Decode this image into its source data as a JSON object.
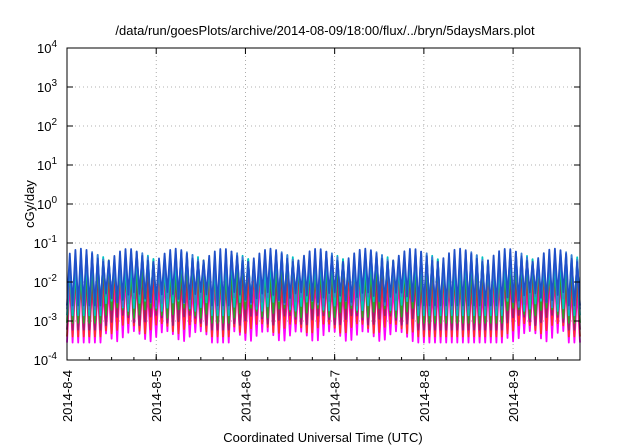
{
  "chart_data": {
    "type": "line",
    "title": "/data/run/goesPlots/archive/2014-08-09/18:00/flux/../bryn/5daysMars.plot",
    "xlabel": "Coordinated Universal Time (UTC)",
    "ylabel": "cGy/day",
    "y_scale": "log",
    "ylim": [
      0.0001,
      10000
    ],
    "y_ticks": [
      {
        "value": 0.0001,
        "base": "10",
        "exp": "-4"
      },
      {
        "value": 0.001,
        "base": "10",
        "exp": "-3"
      },
      {
        "value": 0.01,
        "base": "10",
        "exp": "-2"
      },
      {
        "value": 0.1,
        "base": "10",
        "exp": "-1"
      },
      {
        "value": 1,
        "base": "10",
        "exp": "0"
      },
      {
        "value": 10,
        "base": "10",
        "exp": "1"
      },
      {
        "value": 100,
        "base": "10",
        "exp": "2"
      },
      {
        "value": 1000,
        "base": "10",
        "exp": "3"
      },
      {
        "value": 10000,
        "base": "10",
        "exp": "4"
      }
    ],
    "xlim": [
      "2014-08-04 00:00",
      "2014-08-09 18:00"
    ],
    "x_ticks": [
      "2014-8-4",
      "2014-8-5",
      "2014-8-6",
      "2014-8-7",
      "2014-8-8",
      "2014-8-9"
    ],
    "grid": true,
    "legend": "none",
    "sample_interval_hours": 1.5,
    "dip_windows": [
      [
        "2014-08-04 00:00",
        "2014-08-04 09:00"
      ],
      [
        "2014-08-05 14:00",
        "2014-08-05 20:00"
      ],
      [
        "2014-08-07 22:00",
        "2014-08-08 21:00"
      ],
      [
        "2014-08-09 14:00",
        "2014-08-09 18:00"
      ]
    ],
    "series": [
      {
        "color": "#ff00ff",
        "peak": 0.012,
        "trough": 0.0005,
        "dip_trough": 0.00028
      },
      {
        "color": "#ff2d2d",
        "peak": 0.02,
        "trough": 0.0008,
        "dip_trough": 0.0004
      },
      {
        "color": "#9c1e6e",
        "peak": 0.028,
        "trough": 0.0013,
        "dip_trough": 0.0006
      },
      {
        "color": "#2ca02c",
        "peak": 0.035,
        "trough": 0.002,
        "dip_trough": 0.0009
      },
      {
        "color": "#00c4c4",
        "peak": 0.045,
        "trough": 0.003,
        "dip_trough": 0.0014
      },
      {
        "color": "#3a7bd5",
        "peak": 0.055,
        "trough": 0.004,
        "dip_trough": 0.002
      },
      {
        "color": "#2050c8",
        "peak": 0.065,
        "trough": 0.005,
        "dip_trough": 0.0025
      }
    ]
  }
}
